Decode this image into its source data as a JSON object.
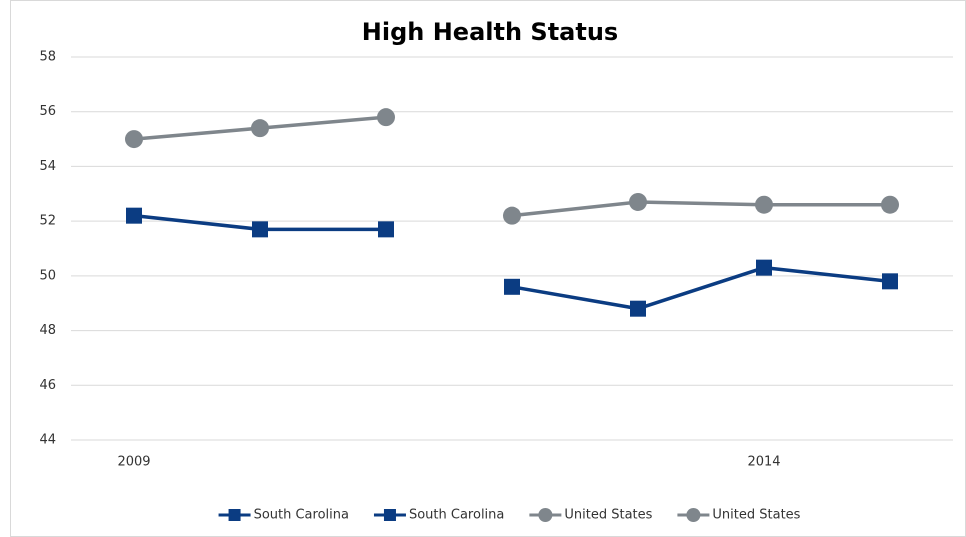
{
  "chart_data": {
    "type": "line",
    "title": "High Health Status",
    "categories": [
      "2009",
      null,
      null,
      null,
      null,
      "2014",
      null
    ],
    "series": [
      {
        "name": "South Carolina",
        "color": "#0b3c82",
        "marker": "square",
        "values": [
          52.2,
          51.7,
          51.7,
          null,
          null,
          null,
          null
        ]
      },
      {
        "name": "South Carolina",
        "color": "#0b3c82",
        "marker": "square",
        "values": [
          null,
          null,
          null,
          49.6,
          48.8,
          50.3,
          49.8
        ]
      },
      {
        "name": "United States",
        "color": "#7f868c",
        "marker": "circle",
        "values": [
          55.0,
          55.4,
          55.8,
          null,
          null,
          null,
          null
        ]
      },
      {
        "name": "United States",
        "color": "#7f868c",
        "marker": "circle",
        "values": [
          null,
          null,
          null,
          52.2,
          52.7,
          52.6,
          52.6
        ]
      }
    ],
    "ylim": [
      44,
      58
    ],
    "yticks": [
      44,
      46,
      48,
      50,
      52,
      54,
      56,
      58
    ],
    "grid": true,
    "legend": "bottom"
  }
}
